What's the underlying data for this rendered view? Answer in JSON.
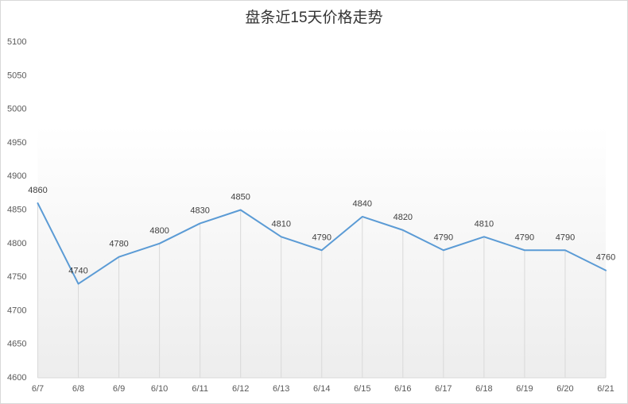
{
  "chart_data": {
    "type": "line",
    "title": "盘条近15天价格走势",
    "categories": [
      "6/7",
      "6/8",
      "6/9",
      "6/10",
      "6/11",
      "6/12",
      "6/13",
      "6/14",
      "6/15",
      "6/16",
      "6/17",
      "6/18",
      "6/19",
      "6/20",
      "6/21"
    ],
    "series": [
      {
        "values": [
          4860,
          4740,
          4780,
          4800,
          4830,
          4850,
          4810,
          4790,
          4840,
          4820,
          4790,
          4810,
          4790,
          4790,
          4760
        ],
        "color": "#5B9BD5"
      }
    ],
    "ylim": [
      4600,
      5100
    ],
    "yticks": [
      4600,
      4650,
      4700,
      4750,
      4800,
      4850,
      4900,
      4950,
      5000,
      5050,
      5100
    ],
    "grid": false,
    "show_legend": false,
    "data_labels": true,
    "drop_lines": true,
    "colors": {
      "line": "#5B9BD5",
      "drop_line": "#D9D9D9",
      "axis": "#D9D9D9",
      "plot_gradient_top": "#FFFFFF",
      "plot_gradient_bottom": "#EDEDED"
    }
  }
}
